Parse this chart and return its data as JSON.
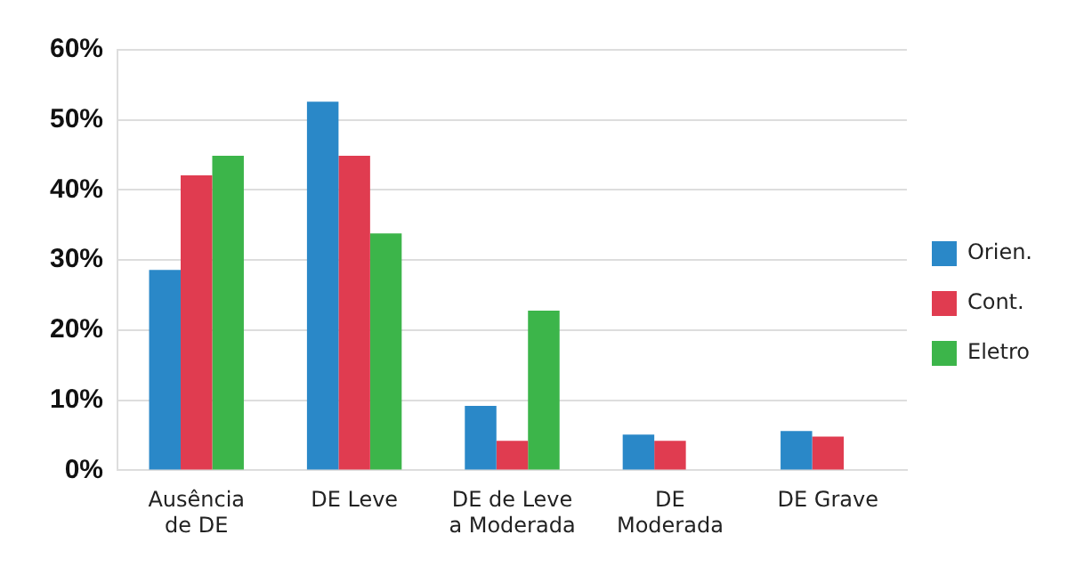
{
  "chart_data": {
    "type": "bar",
    "categories": [
      "Ausência de DE",
      "DE Leve",
      "DE de Leve a Moderada",
      "DE Moderada",
      "DE Grave"
    ],
    "series": [
      {
        "name": "Orien.",
        "color": "#2a88c8",
        "values": [
          28.6,
          52.6,
          9.2,
          5.1,
          5.6
        ]
      },
      {
        "name": "Cont.",
        "color": "#e03c50",
        "values": [
          42.1,
          44.9,
          4.2,
          4.2,
          4.8
        ]
      },
      {
        "name": "Eletro",
        "color": "#3cb54a",
        "values": [
          44.9,
          33.8,
          22.8,
          null,
          null
        ]
      }
    ],
    "ylim": [
      0,
      60
    ],
    "yticks": [
      {
        "value": 0,
        "label": "0%"
      },
      {
        "value": 10,
        "label": "10%"
      },
      {
        "value": 20,
        "label": "20%"
      },
      {
        "value": 30,
        "label": "30%"
      },
      {
        "value": 40,
        "label": "40%"
      },
      {
        "value": 50,
        "label": "50%"
      },
      {
        "value": 60,
        "label": "60%"
      }
    ],
    "grid": "y",
    "legend": "right"
  }
}
